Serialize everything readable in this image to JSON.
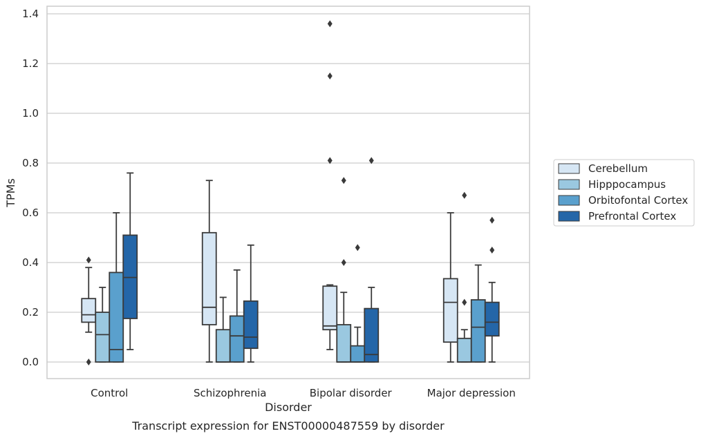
{
  "chart_data": {
    "type": "box",
    "title": "",
    "caption": "Transcript expression for ENST00000487559 by disorder",
    "xlabel": "Disorder",
    "ylabel": "TPMs",
    "ylim": [
      -0.065,
      1.43
    ],
    "yticks": [
      0.0,
      0.2,
      0.4,
      0.6,
      0.8,
      1.0,
      1.2,
      1.4
    ],
    "ytick_labels": [
      "0.0",
      "0.2",
      "0.4",
      "0.6",
      "0.8",
      "1.0",
      "1.2",
      "1.4"
    ],
    "grid": "horizontal",
    "legend_position": "right",
    "categories": [
      "Control",
      "Schizophrenia",
      "Bipolar disorder",
      "Major depression"
    ],
    "series": [
      {
        "name": "Cerebellum",
        "color": "#d6e6f4",
        "boxes": [
          {
            "whisker_low": 0.12,
            "q1": 0.16,
            "median": 0.19,
            "q3": 0.255,
            "whisker_high": 0.38,
            "outliers": [
              0.41,
              0.0
            ]
          },
          {
            "whisker_low": 0.0,
            "q1": 0.15,
            "median": 0.22,
            "q3": 0.52,
            "whisker_high": 0.73,
            "outliers": []
          },
          {
            "whisker_low": 0.05,
            "q1": 0.13,
            "median": 0.145,
            "q3": 0.305,
            "whisker_high": 0.31,
            "outliers": [
              1.36,
              1.15,
              0.81
            ]
          },
          {
            "whisker_low": 0.0,
            "q1": 0.08,
            "median": 0.24,
            "q3": 0.335,
            "whisker_high": 0.6,
            "outliers": []
          }
        ]
      },
      {
        "name": "Hipppocampus",
        "color": "#9ac8e0",
        "boxes": [
          {
            "whisker_low": 0.0,
            "q1": 0.0,
            "median": 0.11,
            "q3": 0.2,
            "whisker_high": 0.3,
            "outliers": []
          },
          {
            "whisker_low": 0.0,
            "q1": 0.0,
            "median": 0.0,
            "q3": 0.13,
            "whisker_high": 0.26,
            "outliers": []
          },
          {
            "whisker_low": 0.0,
            "q1": 0.0,
            "median": 0.0,
            "q3": 0.15,
            "whisker_high": 0.28,
            "outliers": [
              0.73,
              0.4
            ]
          },
          {
            "whisker_low": 0.0,
            "q1": 0.0,
            "median": 0.0,
            "q3": 0.095,
            "whisker_high": 0.13,
            "outliers": [
              0.24,
              0.67
            ]
          }
        ]
      },
      {
        "name": "Orbitofontal Cortex",
        "color": "#5aa0cd",
        "boxes": [
          {
            "whisker_low": 0.0,
            "q1": 0.0,
            "median": 0.05,
            "q3": 0.36,
            "whisker_high": 0.6,
            "outliers": []
          },
          {
            "whisker_low": 0.0,
            "q1": 0.0,
            "median": 0.105,
            "q3": 0.185,
            "whisker_high": 0.37,
            "outliers": []
          },
          {
            "whisker_low": 0.0,
            "q1": 0.0,
            "median": 0.0,
            "q3": 0.065,
            "whisker_high": 0.14,
            "outliers": [
              0.46
            ]
          },
          {
            "whisker_low": 0.0,
            "q1": 0.0,
            "median": 0.14,
            "q3": 0.25,
            "whisker_high": 0.39,
            "outliers": []
          }
        ]
      },
      {
        "name": "Prefrontal Cortex",
        "color": "#2466a8",
        "boxes": [
          {
            "whisker_low": 0.05,
            "q1": 0.175,
            "median": 0.34,
            "q3": 0.51,
            "whisker_high": 0.76,
            "outliers": []
          },
          {
            "whisker_low": 0.0,
            "q1": 0.055,
            "median": 0.1,
            "q3": 0.245,
            "whisker_high": 0.47,
            "outliers": []
          },
          {
            "whisker_low": 0.0,
            "q1": 0.0,
            "median": 0.03,
            "q3": 0.215,
            "whisker_high": 0.3,
            "outliers": [
              0.81
            ]
          },
          {
            "whisker_low": 0.0,
            "q1": 0.105,
            "median": 0.16,
            "q3": 0.24,
            "whisker_high": 0.32,
            "outliers": [
              0.57,
              0.45
            ]
          }
        ]
      }
    ]
  }
}
